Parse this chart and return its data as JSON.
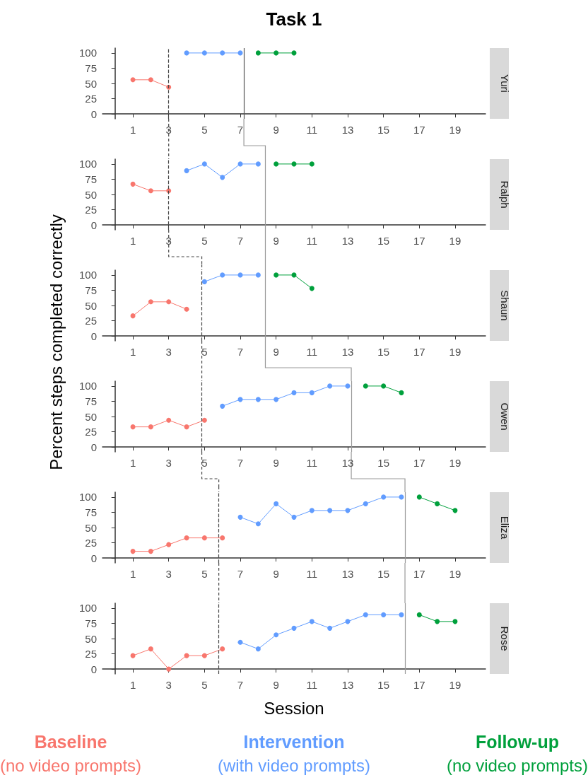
{
  "chart_data": [
    {
      "type": "line",
      "title": "Task 1",
      "y2label": "Yuri",
      "ylabel": "Percent steps completed correctly",
      "xlim": [
        -0.7,
        20.7
      ],
      "xticks": [
        1,
        3,
        5,
        7,
        9,
        11,
        13,
        15,
        17,
        19
      ],
      "ylim": [
        -8,
        108
      ],
      "yticks": [
        0,
        25,
        50,
        75,
        100
      ],
      "grid": false,
      "legend": false,
      "marker": "circle",
      "line_style": "solid",
      "series": [
        {
          "color": "#f8766d",
          "x": [
            1,
            2,
            3
          ],
          "values": [
            56,
            56,
            44
          ]
        },
        {
          "color": "#619cff",
          "x": [
            4,
            5,
            6,
            7
          ],
          "values": [
            100,
            100,
            100,
            100
          ]
        },
        {
          "color": "#00a03c",
          "x": [
            8,
            9,
            10
          ],
          "values": [
            100,
            100,
            100
          ]
        }
      ],
      "ref_lines": [
        {
          "axis": "x",
          "value": 3,
          "color": "#444444",
          "line_style": "dashed"
        },
        {
          "axis": "x",
          "value": 7.2,
          "color": "#555555",
          "line_style": "solid"
        }
      ]
    },
    {
      "type": "line",
      "y2label": "Ralph",
      "xlim": [
        -0.7,
        20.7
      ],
      "xticks": [
        1,
        3,
        5,
        7,
        9,
        11,
        13,
        15,
        17,
        19
      ],
      "ylim": [
        -8,
        108
      ],
      "yticks": [
        0,
        25,
        50,
        75,
        100
      ],
      "grid": false,
      "legend": false,
      "marker": "circle",
      "line_style": "solid",
      "series": [
        {
          "color": "#f8766d",
          "x": [
            1,
            2,
            3
          ],
          "values": [
            67,
            56,
            56
          ]
        },
        {
          "color": "#619cff",
          "x": [
            4,
            5,
            6,
            7,
            8
          ],
          "values": [
            89,
            100,
            78,
            100,
            100
          ]
        },
        {
          "color": "#00a03c",
          "x": [
            9,
            10,
            11
          ],
          "values": [
            100,
            100,
            100
          ]
        }
      ],
      "ref_lines": [
        {
          "axis": "x",
          "value": 3,
          "color": "#444444",
          "line_style": "dashed"
        },
        {
          "axis": "x",
          "value": 8.4,
          "color": "#999999",
          "line_style": "solid"
        }
      ]
    },
    {
      "type": "line",
      "y2label": "Shaun",
      "xlim": [
        -0.7,
        20.7
      ],
      "xticks": [
        1,
        3,
        5,
        7,
        9,
        11,
        13,
        15,
        17,
        19
      ],
      "ylim": [
        -8,
        108
      ],
      "yticks": [
        0,
        25,
        50,
        75,
        100
      ],
      "grid": false,
      "legend": false,
      "marker": "circle",
      "line_style": "solid",
      "series": [
        {
          "color": "#f8766d",
          "x": [
            1,
            2,
            3,
            4
          ],
          "values": [
            33,
            56,
            56,
            44
          ]
        },
        {
          "color": "#619cff",
          "x": [
            5,
            6,
            7,
            8
          ],
          "values": [
            89,
            100,
            100,
            100
          ]
        },
        {
          "color": "#00a03c",
          "x": [
            9,
            10,
            11
          ],
          "values": [
            100,
            100,
            78
          ]
        }
      ],
      "ref_lines": [
        {
          "axis": "x",
          "value": 4.85,
          "color": "#444444",
          "line_style": "dashed"
        },
        {
          "axis": "x",
          "value": 8.4,
          "color": "#999999",
          "line_style": "solid"
        }
      ]
    },
    {
      "type": "line",
      "y2label": "Owen",
      "xlim": [
        -0.7,
        20.7
      ],
      "xticks": [
        1,
        3,
        5,
        7,
        9,
        11,
        13,
        15,
        17,
        19
      ],
      "ylim": [
        -8,
        108
      ],
      "yticks": [
        0,
        25,
        50,
        75,
        100
      ],
      "grid": false,
      "legend": false,
      "marker": "circle",
      "line_style": "solid",
      "series": [
        {
          "color": "#f8766d",
          "x": [
            1,
            2,
            3,
            4,
            5
          ],
          "values": [
            33,
            33,
            44,
            33,
            44
          ]
        },
        {
          "color": "#619cff",
          "x": [
            6,
            7,
            8,
            9,
            10,
            11,
            12,
            13
          ],
          "values": [
            67,
            78,
            78,
            78,
            89,
            89,
            100,
            100
          ]
        },
        {
          "color": "#00a03c",
          "x": [
            14,
            15,
            16
          ],
          "values": [
            100,
            100,
            89
          ]
        }
      ],
      "ref_lines": [
        {
          "axis": "x",
          "value": 4.85,
          "color": "#444444",
          "line_style": "dashed"
        },
        {
          "axis": "x",
          "value": 13.2,
          "color": "#999999",
          "line_style": "solid"
        }
      ]
    },
    {
      "type": "line",
      "y2label": "Eliza",
      "xlim": [
        -0.7,
        20.7
      ],
      "xticks": [
        1,
        3,
        5,
        7,
        9,
        11,
        13,
        15,
        17,
        19
      ],
      "ylim": [
        -8,
        108
      ],
      "yticks": [
        0,
        25,
        50,
        75,
        100
      ],
      "grid": false,
      "legend": false,
      "marker": "circle",
      "line_style": "solid",
      "series": [
        {
          "color": "#f8766d",
          "x": [
            1,
            2,
            3,
            4,
            5,
            6
          ],
          "values": [
            11,
            11,
            22,
            33,
            33,
            33
          ]
        },
        {
          "color": "#619cff",
          "x": [
            7,
            8,
            9,
            10,
            11,
            12,
            13,
            14,
            15,
            16
          ],
          "values": [
            67,
            56,
            89,
            67,
            78,
            78,
            78,
            89,
            100,
            100
          ]
        },
        {
          "color": "#00a03c",
          "x": [
            17,
            18,
            19
          ],
          "values": [
            100,
            89,
            78
          ]
        }
      ],
      "ref_lines": [
        {
          "axis": "x",
          "value": 5.8,
          "color": "#444444",
          "line_style": "dashed"
        },
        {
          "axis": "x",
          "value": 16.2,
          "color": "#999999",
          "line_style": "solid"
        }
      ]
    },
    {
      "type": "line",
      "y2label": "Rose",
      "xlabel": "Session",
      "xlim": [
        -0.7,
        20.7
      ],
      "xticks": [
        1,
        3,
        5,
        7,
        9,
        11,
        13,
        15,
        17,
        19
      ],
      "ylim": [
        -8,
        108
      ],
      "yticks": [
        0,
        25,
        50,
        75,
        100
      ],
      "grid": false,
      "legend": "bottom",
      "marker": "circle",
      "line_style": "solid",
      "series": [
        {
          "name": "Baseline\n(no video prompts)",
          "color": "#f8766d",
          "x": [
            1,
            2,
            3,
            4,
            5,
            6
          ],
          "values": [
            22,
            33,
            0,
            22,
            22,
            33
          ]
        },
        {
          "name": "Intervention\n(with video prompts)",
          "color": "#619cff",
          "x": [
            7,
            8,
            9,
            10,
            11,
            12,
            13,
            14,
            15,
            16
          ],
          "values": [
            44,
            33,
            56,
            67,
            78,
            67,
            78,
            89,
            89,
            89
          ]
        },
        {
          "name": "Follow-up\n(no video prompts)",
          "color": "#00a03c",
          "x": [
            17,
            18,
            19
          ],
          "values": [
            89,
            78,
            78
          ]
        }
      ],
      "ref_lines": [
        {
          "axis": "x",
          "value": 5.8,
          "color": "#444444",
          "line_style": "dashed"
        },
        {
          "axis": "x",
          "value": 16.2,
          "color": "#999999",
          "line_style": "solid"
        }
      ]
    }
  ]
}
